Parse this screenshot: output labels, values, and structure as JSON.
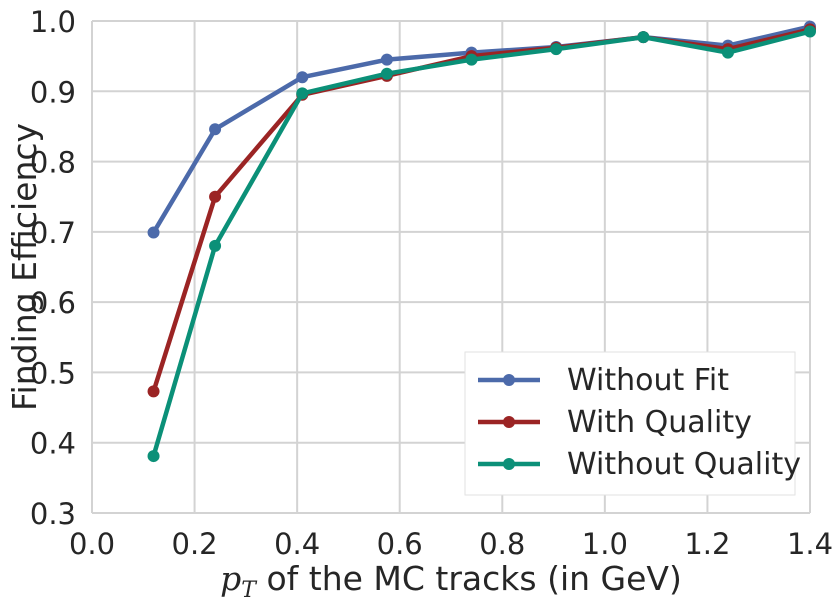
{
  "chart_data": {
    "type": "line",
    "title": "",
    "xlabel_var": "p",
    "xlabel_sub": "T",
    "xlabel_text": " of the MC tracks (in GeV)",
    "ylabel": "Finding Efficiency",
    "xlim": [
      0.0,
      1.4
    ],
    "ylim": [
      0.3,
      1.0
    ],
    "xticks": [
      0.0,
      0.2,
      0.4,
      0.6,
      0.8,
      1.0,
      1.2,
      1.4
    ],
    "xtick_labels": [
      "0.0",
      "0.2",
      "0.4",
      "0.6",
      "0.8",
      "1.0",
      "1.2",
      "1.4"
    ],
    "yticks": [
      0.3,
      0.4,
      0.5,
      0.6,
      0.7,
      0.8,
      0.9,
      1.0
    ],
    "ytick_labels": [
      "0.3",
      "0.4",
      "0.5",
      "0.6",
      "0.7",
      "0.8",
      "0.9",
      "1.0"
    ],
    "grid": true,
    "legend_position": "lower-right",
    "x": [
      0.12,
      0.24,
      0.41,
      0.575,
      0.74,
      0.905,
      1.075,
      1.24,
      1.4
    ],
    "series": [
      {
        "name": "Without Fit",
        "color": "#4c6aaa",
        "values": [
          0.699,
          0.846,
          0.92,
          0.945,
          0.955,
          0.963,
          0.977,
          0.965,
          0.992
        ]
      },
      {
        "name": "With Quality",
        "color": "#9b2424",
        "values": [
          0.473,
          0.75,
          0.895,
          0.922,
          0.95,
          0.962,
          0.977,
          0.96,
          0.988
        ]
      },
      {
        "name": "Without Quality",
        "color": "#0b9078",
        "values": [
          0.381,
          0.68,
          0.897,
          0.925,
          0.945,
          0.96,
          0.977,
          0.955,
          0.985
        ]
      }
    ]
  }
}
